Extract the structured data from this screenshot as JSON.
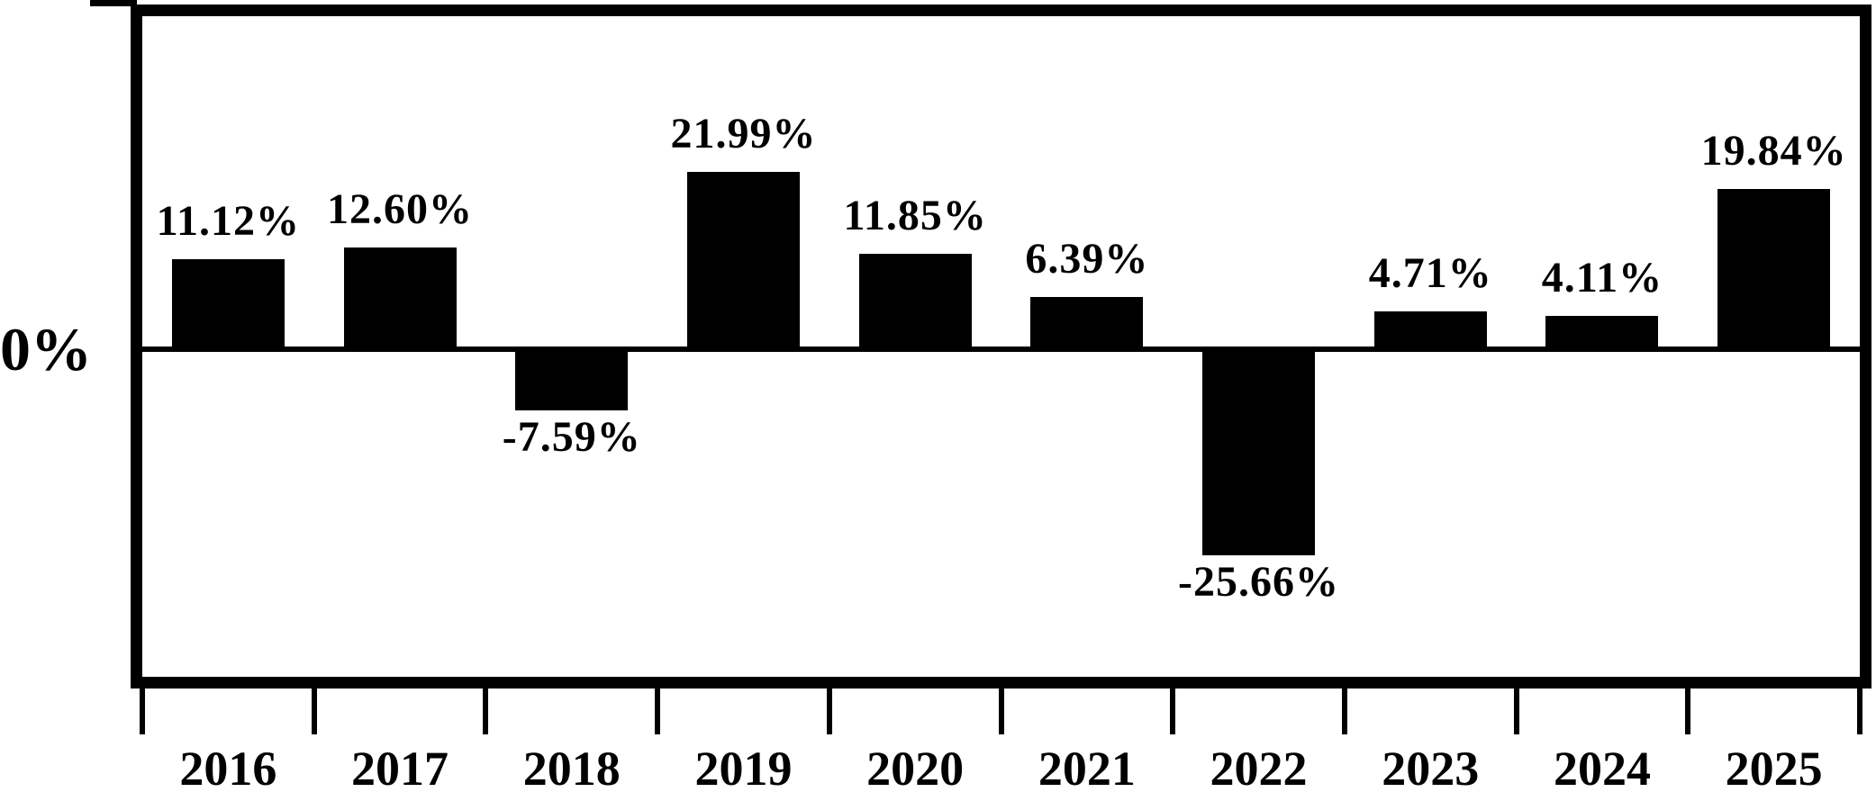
{
  "chart_data": {
    "type": "bar",
    "title": "",
    "xlabel": "",
    "ylabel": "",
    "categories": [
      "2016",
      "2017",
      "2018",
      "2019",
      "2020",
      "2021",
      "2022",
      "2023",
      "2024",
      "2025"
    ],
    "values": [
      11.12,
      12.6,
      -7.59,
      21.99,
      11.85,
      6.39,
      -25.66,
      4.71,
      4.11,
      19.84
    ],
    "value_labels": [
      "11.12%",
      "12.60%",
      "-7.59%",
      "21.99%",
      "11.85%",
      "6.39%",
      "-25.66%",
      "4.71%",
      "4.11%",
      "19.84%"
    ],
    "ylim": [
      -40.7,
      41.3
    ],
    "zero_axis_label": "0%",
    "grid": false,
    "legend": null,
    "bar_color": "#000000",
    "axis_color": "#000000",
    "background_color": "#ffffff"
  }
}
